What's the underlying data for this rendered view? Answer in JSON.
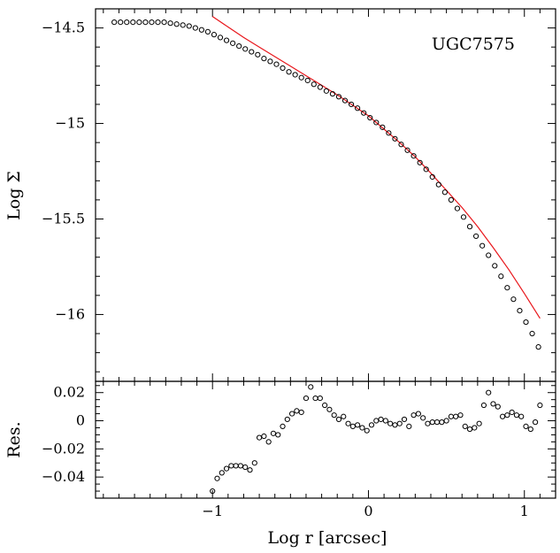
{
  "chart_data": [
    {
      "type": "scatter",
      "annotation": "UGC7575",
      "xlabel": "",
      "ylabel": "Log Σ",
      "xlim": [
        -1.75,
        1.2
      ],
      "ylim": [
        -16.35,
        -14.4
      ],
      "x_ticks": [
        -1,
        0,
        1
      ],
      "y_ticks": [
        -14.5,
        -15,
        -15.5,
        -16
      ],
      "y_tick_labels": [
        "−14.5",
        "−15",
        "−15.5",
        "−16"
      ],
      "series": [
        {
          "kind": "points",
          "x": [
            -1.63,
            -1.59,
            -1.55,
            -1.51,
            -1.47,
            -1.43,
            -1.39,
            -1.35,
            -1.31,
            -1.27,
            -1.23,
            -1.19,
            -1.15,
            -1.11,
            -1.07,
            -1.03,
            -0.99,
            -0.95,
            -0.91,
            -0.87,
            -0.83,
            -0.79,
            -0.75,
            -0.71,
            -0.67,
            -0.63,
            -0.59,
            -0.55,
            -0.51,
            -0.47,
            -0.43,
            -0.39,
            -0.35,
            -0.31,
            -0.27,
            -0.23,
            -0.19,
            -0.15,
            -0.11,
            -0.07,
            -0.03,
            0.01,
            0.05,
            0.09,
            0.13,
            0.17,
            0.21,
            0.25,
            0.29,
            0.33,
            0.37,
            0.41,
            0.45,
            0.49,
            0.53,
            0.57,
            0.61,
            0.65,
            0.69,
            0.73,
            0.77,
            0.81,
            0.85,
            0.89,
            0.93,
            0.97,
            1.01,
            1.05,
            1.09
          ],
          "y": [
            -14.47,
            -14.47,
            -14.47,
            -14.47,
            -14.47,
            -14.47,
            -14.47,
            -14.47,
            -14.47,
            -14.475,
            -14.48,
            -14.485,
            -14.49,
            -14.5,
            -14.51,
            -14.52,
            -14.535,
            -14.55,
            -14.565,
            -14.58,
            -14.595,
            -14.61,
            -14.625,
            -14.64,
            -14.66,
            -14.675,
            -14.69,
            -14.71,
            -14.73,
            -14.745,
            -14.76,
            -14.775,
            -14.795,
            -14.81,
            -14.83,
            -14.845,
            -14.86,
            -14.88,
            -14.9,
            -14.92,
            -14.945,
            -14.97,
            -14.995,
            -15.02,
            -15.05,
            -15.08,
            -15.11,
            -15.14,
            -15.17,
            -15.205,
            -15.24,
            -15.28,
            -15.32,
            -15.36,
            -15.4,
            -15.445,
            -15.49,
            -15.54,
            -15.59,
            -15.64,
            -15.69,
            -15.745,
            -15.8,
            -15.86,
            -15.92,
            -15.98,
            -16.04,
            -16.1,
            -16.17
          ]
        },
        {
          "kind": "fit",
          "x": [
            -1.0,
            -0.9,
            -0.8,
            -0.7,
            -0.6,
            -0.5,
            -0.4,
            -0.3,
            -0.2,
            -0.1,
            0.0,
            0.1,
            0.2,
            0.3,
            0.4,
            0.5,
            0.6,
            0.7,
            0.8,
            0.9,
            1.0,
            1.1
          ],
          "y": [
            -14.44,
            -14.495,
            -14.55,
            -14.6,
            -14.65,
            -14.7,
            -14.75,
            -14.8,
            -14.85,
            -14.905,
            -14.96,
            -15.03,
            -15.1,
            -15.175,
            -15.26,
            -15.35,
            -15.44,
            -15.54,
            -15.65,
            -15.765,
            -15.89,
            -16.02
          ]
        }
      ]
    },
    {
      "type": "scatter",
      "xlabel": "Log r [arcsec]",
      "ylabel": "Res.",
      "xlim": [
        -1.75,
        1.2
      ],
      "ylim": [
        -0.055,
        0.028
      ],
      "x_ticks": [
        -1,
        0,
        1
      ],
      "x_tick_labels": [
        "−1",
        "0",
        "1"
      ],
      "y_ticks": [
        0.02,
        0,
        -0.02,
        -0.04
      ],
      "y_tick_labels": [
        "0.02",
        "0",
        "−0.02",
        "−0.04"
      ],
      "series": [
        {
          "kind": "points",
          "x": [
            -1.0,
            -0.97,
            -0.94,
            -0.91,
            -0.88,
            -0.85,
            -0.82,
            -0.79,
            -0.76,
            -0.73,
            -0.7,
            -0.67,
            -0.64,
            -0.61,
            -0.58,
            -0.55,
            -0.52,
            -0.49,
            -0.46,
            -0.43,
            -0.4,
            -0.37,
            -0.34,
            -0.31,
            -0.28,
            -0.25,
            -0.22,
            -0.19,
            -0.16,
            -0.13,
            -0.1,
            -0.07,
            -0.04,
            -0.01,
            0.02,
            0.05,
            0.08,
            0.11,
            0.14,
            0.17,
            0.2,
            0.23,
            0.26,
            0.29,
            0.32,
            0.35,
            0.38,
            0.41,
            0.44,
            0.47,
            0.5,
            0.53,
            0.56,
            0.59,
            0.62,
            0.65,
            0.68,
            0.71,
            0.74,
            0.77,
            0.8,
            0.83,
            0.86,
            0.89,
            0.92,
            0.95,
            0.98,
            1.01,
            1.04,
            1.07,
            1.1
          ],
          "y": [
            -0.05,
            -0.041,
            -0.037,
            -0.034,
            -0.032,
            -0.032,
            -0.032,
            -0.033,
            -0.035,
            -0.03,
            -0.012,
            -0.011,
            -0.015,
            -0.009,
            -0.01,
            -0.004,
            0.001,
            0.005,
            0.007,
            0.006,
            0.016,
            0.024,
            0.016,
            0.016,
            0.011,
            0.008,
            0.004,
            0.001,
            0.003,
            -0.002,
            -0.004,
            -0.003,
            -0.005,
            -0.007,
            -0.003,
            0.0,
            0.001,
            0.0,
            -0.002,
            -0.003,
            -0.002,
            0.001,
            -0.004,
            0.004,
            0.005,
            0.002,
            -0.002,
            -0.001,
            -0.001,
            -0.001,
            0.0,
            0.003,
            0.003,
            0.004,
            -0.004,
            -0.006,
            -0.005,
            -0.002,
            0.011,
            0.02,
            0.012,
            0.01,
            0.003,
            0.004,
            0.006,
            0.004,
            0.003,
            -0.004,
            -0.006,
            -0.001,
            0.011
          ]
        }
      ]
    }
  ]
}
